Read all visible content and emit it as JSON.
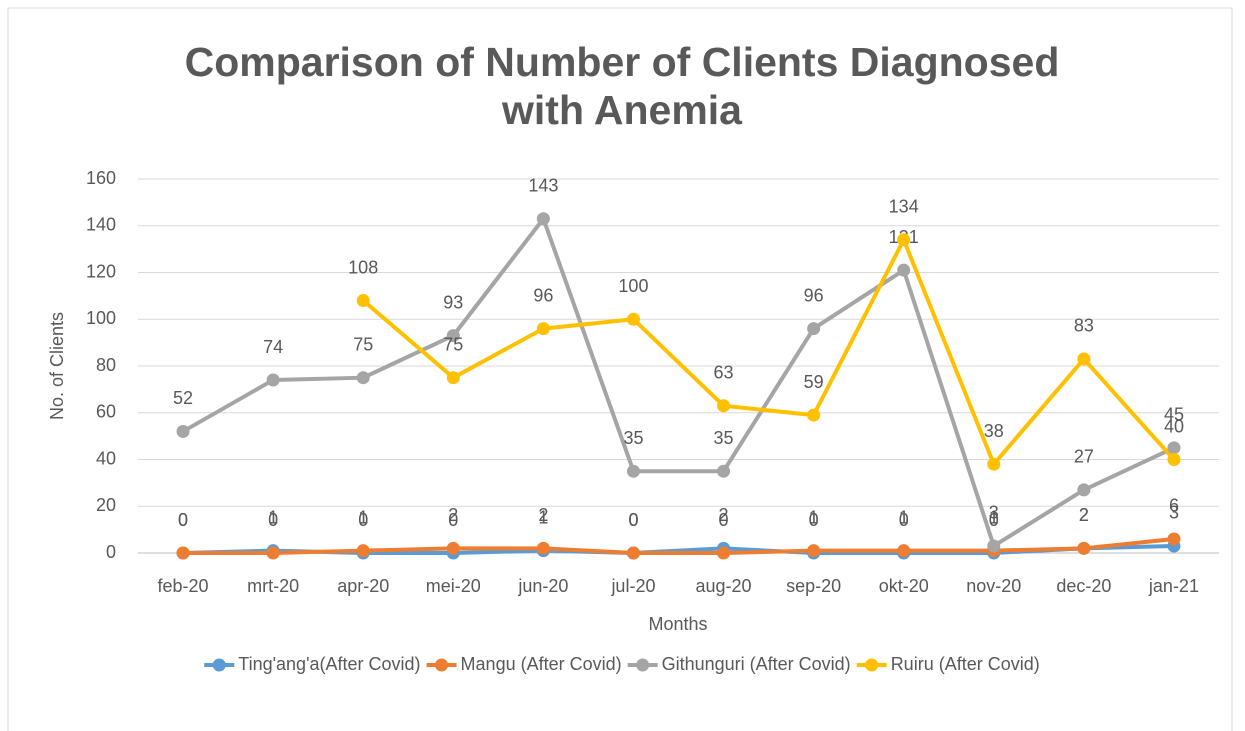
{
  "chart_data": {
    "type": "line",
    "title": "Comparison of Number of Clients Diagnosed with Anemia",
    "x_label": "Months",
    "y_label": "No. of Clients",
    "categories": [
      "feb-20",
      "mrt-20",
      "apr-20",
      "mei-20",
      "jun-20",
      "jul-20",
      "aug-20",
      "sep-20",
      "okt-20",
      "nov-20",
      "dec-20",
      "jan-21"
    ],
    "series": [
      {
        "name": "Ting'ang'a(After Covid)",
        "color": "#5b9bd5",
        "values": [
          0,
          1,
          0,
          0,
          1,
          0,
          2,
          0,
          0,
          0,
          2,
          3
        ]
      },
      {
        "name": "Mangu (After Covid)",
        "color": "#ed7d31",
        "values": [
          0,
          0,
          1,
          2,
          2,
          0,
          0,
          1,
          1,
          1,
          2,
          6
        ]
      },
      {
        "name": "Githunguri (After Covid)",
        "color": "#a5a5a5",
        "values": [
          52,
          74,
          75,
          93,
          143,
          35,
          35,
          96,
          121,
          3,
          27,
          45
        ]
      },
      {
        "name": "Ruiru (After Covid)",
        "color": "#ffc000",
        "values": [
          null,
          null,
          108,
          75,
          96,
          100,
          63,
          59,
          134,
          38,
          83,
          40
        ]
      }
    ],
    "ylim": [
      0,
      160
    ],
    "yticks": [
      0,
      20,
      40,
      60,
      80,
      100,
      120,
      140,
      160
    ],
    "grid": true,
    "legend": "bottom"
  }
}
